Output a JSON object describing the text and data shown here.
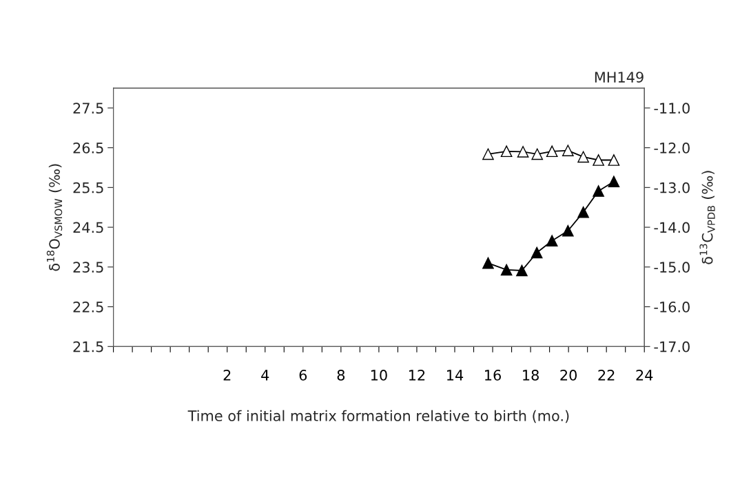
{
  "chart_data": {
    "type": "line",
    "title": "MH149",
    "xlabel": "Time of initial matrix formation relative to birth (mo.)",
    "ylabel": "δ$^{18}$O$_{VSMOW}$ (‰)",
    "y2label": "δ$^{13}$C$_{VPDB}$ (‰)",
    "xlim": [
      -4,
      24
    ],
    "xticks": [
      {
        "value": -4,
        "label": null
      },
      {
        "value": -3,
        "label": null
      },
      {
        "value": -2,
        "label": null
      },
      {
        "value": -1,
        "label": null
      },
      {
        "value": 0,
        "label": null
      },
      {
        "value": 1,
        "label": null
      },
      2,
      {
        "value": 3,
        "label": null
      },
      4,
      {
        "value": 5,
        "label": null
      },
      6,
      {
        "value": 7,
        "label": null
      },
      8,
      {
        "value": 9,
        "label": null
      },
      10,
      {
        "value": 11,
        "label": null
      },
      12,
      {
        "value": 13,
        "label": null
      },
      14,
      {
        "value": 15,
        "label": null
      },
      16,
      {
        "value": 17,
        "label": null
      },
      18,
      {
        "value": 19,
        "label": null
      },
      20,
      {
        "value": 21,
        "label": null
      },
      22,
      {
        "value": 23,
        "label": null
      },
      24
    ],
    "ylim": [
      21.5,
      28.0
    ],
    "yticks": [
      21.5,
      22.5,
      23.5,
      24.5,
      25.5,
      26.5,
      27.5
    ],
    "y2lim": [
      -17.0,
      -10.5
    ],
    "y2ticks": [
      {
        "value": -17,
        "label": "-17.0"
      },
      {
        "value": -16,
        "label": "-16.0"
      },
      {
        "value": -15,
        "label": "-15.0"
      },
      {
        "value": -14,
        "label": "-14.0"
      },
      {
        "value": -13,
        "label": "-13.0"
      },
      {
        "value": -12,
        "label": "-12.0"
      },
      {
        "value": -11,
        "label": "-11.0"
      }
    ],
    "marker": "triangle",
    "line_style": "solid",
    "grid": false,
    "legend": false,
    "series": [
      {
        "color": "#000000",
        "x": [
          15.76,
          16.73,
          17.54,
          18.33,
          19.13,
          19.97,
          20.78,
          21.58,
          22.39
        ],
        "values": [
          23.6,
          23.43,
          23.41,
          23.86,
          24.16,
          24.41,
          24.88,
          25.41,
          25.65
        ]
      },
      {
        "color": "#ffffff",
        "axis": "y2",
        "x": [
          15.76,
          16.73,
          17.6,
          18.35,
          19.13,
          19.97,
          20.78,
          21.58,
          22.39
        ],
        "values": [
          -12.16,
          -12.09,
          -12.1,
          -12.16,
          -12.09,
          -12.07,
          -12.23,
          -12.31,
          -12.31
        ]
      }
    ]
  }
}
